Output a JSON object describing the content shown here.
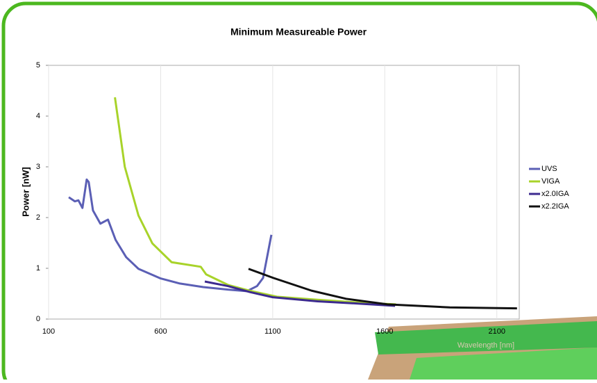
{
  "chart_data": {
    "type": "line",
    "title": "Minimum Measureable Power",
    "x_label": "Wavelength [nm]",
    "y_label": "Power [nW]",
    "xlim": [
      100,
      2200
    ],
    "xticks": [
      100,
      600,
      1100,
      1600,
      2100
    ],
    "ylim": [
      0,
      5
    ],
    "yticks": [
      0,
      1,
      2,
      3,
      4,
      5
    ],
    "grid": true,
    "legend": "right",
    "series": [
      {
        "name": "UVS",
        "color": "#5b5fb5",
        "x": [
          190,
          217,
          233,
          251,
          270,
          279,
          298,
          331,
          365,
          399,
          446,
          501,
          600,
          686,
          790,
          900,
          985,
          1030,
          1057,
          1081,
          1094
        ],
        "values": [
          2.4,
          2.32,
          2.34,
          2.19,
          2.75,
          2.7,
          2.14,
          1.88,
          1.96,
          1.56,
          1.22,
          0.99,
          0.8,
          0.7,
          0.63,
          0.58,
          0.55,
          0.65,
          0.81,
          1.36,
          1.66
        ]
      },
      {
        "name": "VIGA",
        "color": "#a8d32a",
        "x": [
          396,
          440,
          501,
          563,
          649,
          779,
          803,
          902,
          995,
          1119,
          1300,
          1500,
          1650
        ],
        "values": [
          4.37,
          3.0,
          2.04,
          1.49,
          1.12,
          1.03,
          0.88,
          0.67,
          0.56,
          0.44,
          0.38,
          0.32,
          0.29
        ]
      },
      {
        "name": "x2.0IGA",
        "color": "#3c2a8f",
        "x": [
          797,
          900,
          1000,
          1100,
          1300,
          1500,
          1646
        ],
        "values": [
          0.74,
          0.65,
          0.53,
          0.43,
          0.35,
          0.3,
          0.26
        ]
      },
      {
        "name": "x2.2IGA",
        "color": "#111111",
        "x": [
          992,
          1103,
          1273,
          1427,
          1612,
          1890,
          2190
        ],
        "values": [
          0.99,
          0.81,
          0.56,
          0.4,
          0.29,
          0.23,
          0.21
        ]
      }
    ]
  }
}
